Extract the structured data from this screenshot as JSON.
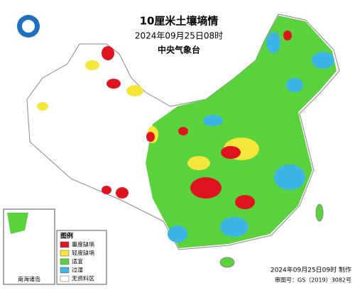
{
  "header": {
    "title": "10厘米土壤墒情",
    "datetime": "2024年09月25日08时",
    "issuer": "中央气象台"
  },
  "legend": {
    "title": "图例",
    "items": [
      {
        "label": "重度缺墒",
        "color": "#e0141e"
      },
      {
        "label": "轻度缺墒",
        "color": "#f5e63c"
      },
      {
        "label": "适宜",
        "color": "#5ad23c"
      },
      {
        "label": "过湿",
        "color": "#3cb4e6"
      },
      {
        "label": "无资料区",
        "color": "#ffffff"
      }
    ]
  },
  "inset": {
    "label": "南海诸岛"
  },
  "footer": {
    "made": "2024年09月25日09时 制作",
    "review": "审图号：GS（2019）3082号"
  }
}
